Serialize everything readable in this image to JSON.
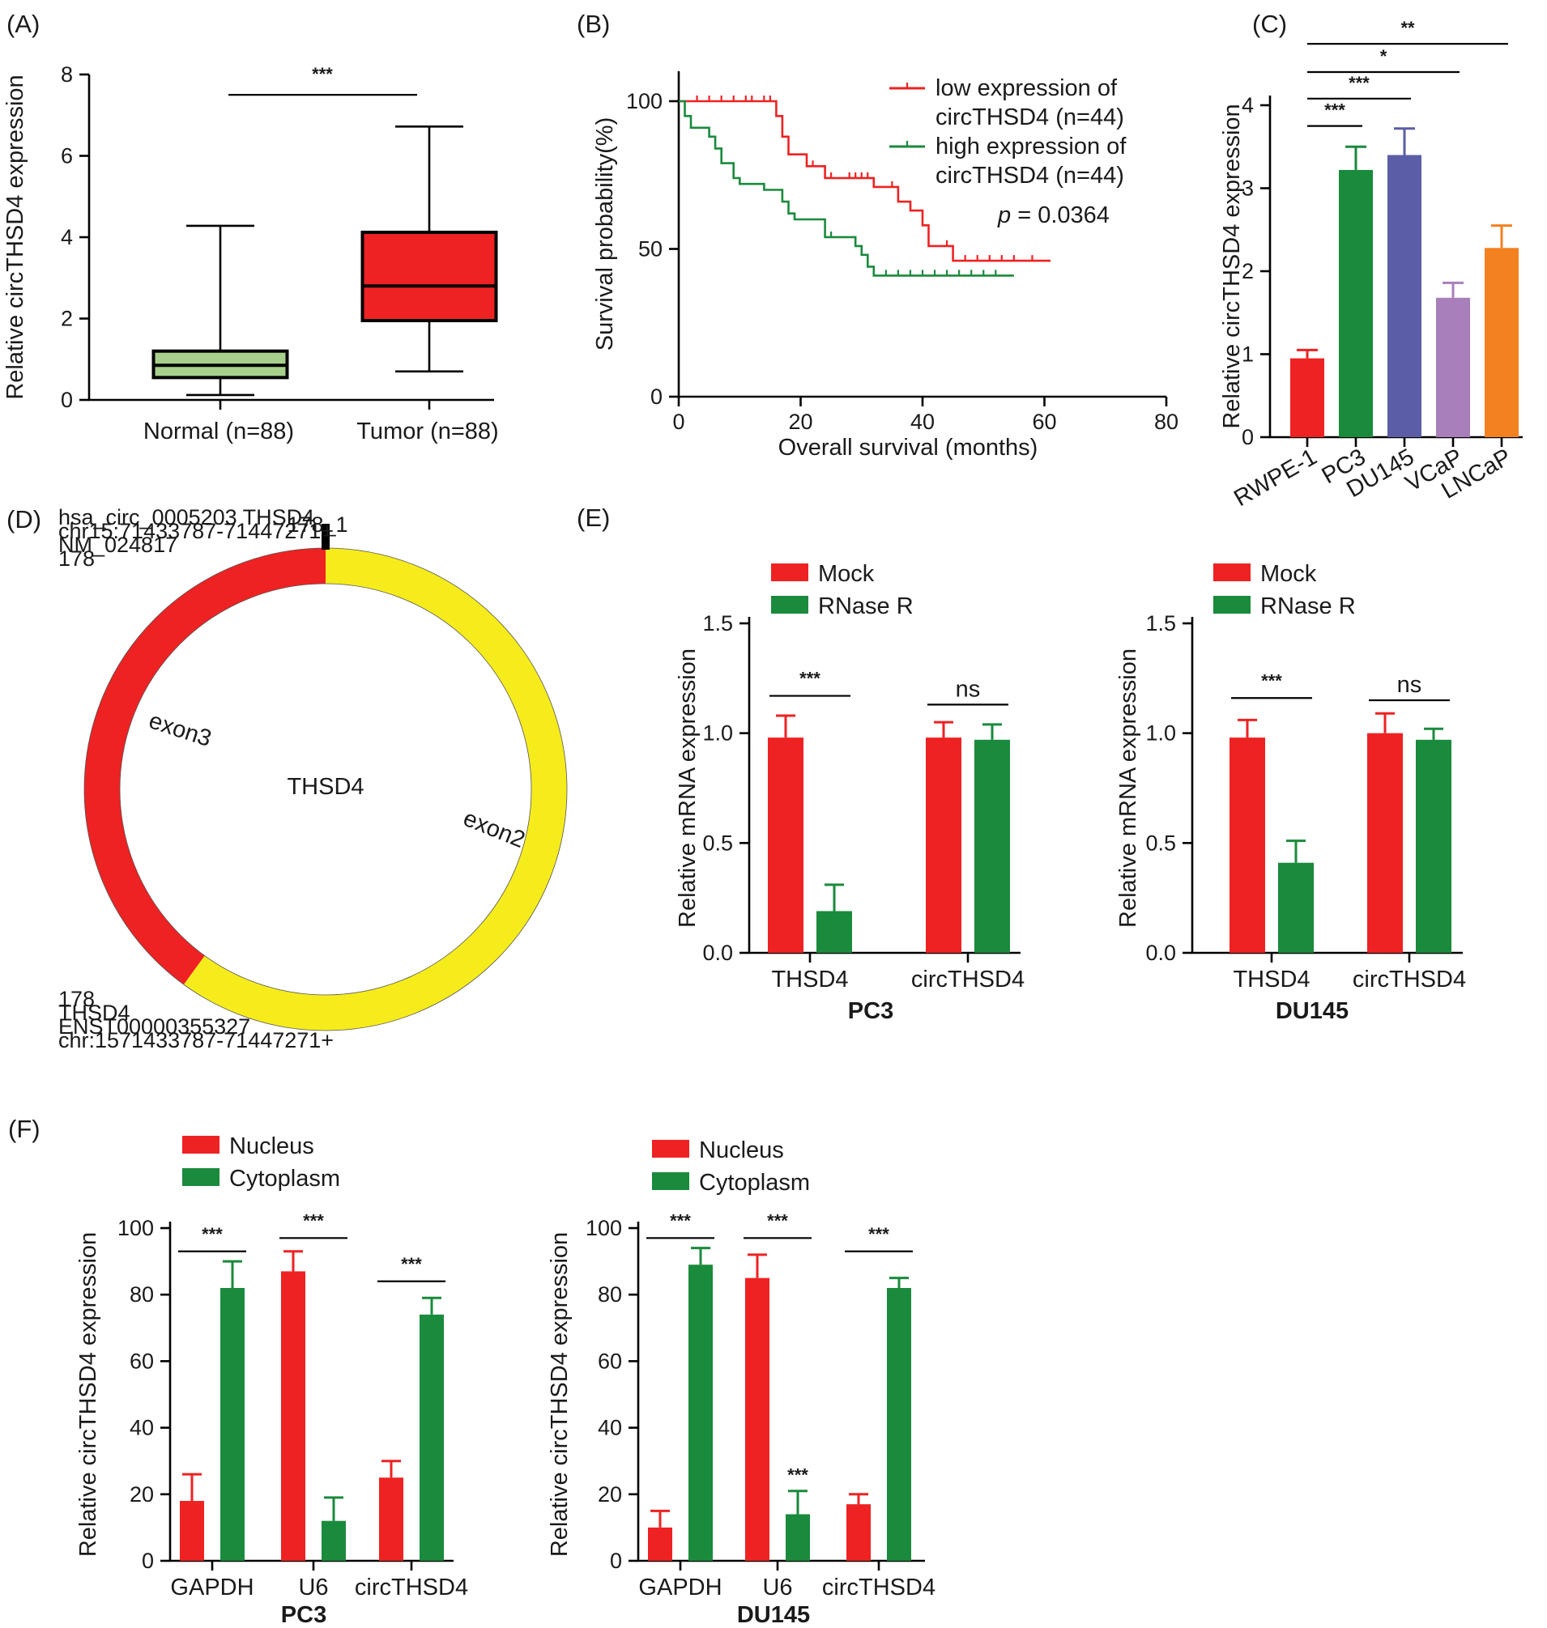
{
  "chart_data": [
    {
      "id": "A",
      "type": "box",
      "panel_label": "(A)",
      "ylabel": "Relative circTHSD4 expression",
      "ylim": [
        0,
        8
      ],
      "yticks": [
        0,
        2,
        4,
        6,
        8
      ],
      "categories": [
        "Normal (n=88)",
        "Tumor (n=88)"
      ],
      "boxes": [
        {
          "name": "Normal (n=88)",
          "min": 0.12,
          "q1": 0.55,
          "median": 0.85,
          "q3": 1.2,
          "max": 4.28,
          "color": "#a8d08d"
        },
        {
          "name": "Tumor (n=88)",
          "min": 0.7,
          "q1": 1.95,
          "median": 2.8,
          "q3": 4.12,
          "max": 6.72,
          "color": "#ee2222"
        }
      ],
      "significance": [
        {
          "from": 0,
          "to": 1,
          "level": 7.5,
          "label": "***"
        }
      ]
    },
    {
      "id": "B",
      "type": "line",
      "subtype": "kaplan-meier",
      "panel_label": "(B)",
      "xlabel": "Overall survival (months)",
      "ylabel": "Survival probability(%)",
      "xlim": [
        0,
        80
      ],
      "ylim": [
        0,
        100
      ],
      "xticks": [
        0,
        20,
        40,
        60,
        80
      ],
      "yticks": [
        0,
        50,
        100
      ],
      "pvalue_prefix": "p",
      "pvalue_text": " = 0.0364",
      "series": [
        {
          "name_line1": "low expression of",
          "name_line2": "circTHSD4 (n=44)",
          "color": "#ee2222",
          "steps": [
            [
              0,
              100
            ],
            [
              16,
              100
            ],
            [
              16,
              95
            ],
            [
              17,
              95
            ],
            [
              17,
              88
            ],
            [
              18,
              88
            ],
            [
              18,
              82
            ],
            [
              21,
              82
            ],
            [
              21,
              78
            ],
            [
              24,
              78
            ],
            [
              24,
              74
            ],
            [
              32,
              74
            ],
            [
              32,
              71
            ],
            [
              36,
              71
            ],
            [
              36,
              66
            ],
            [
              38,
              66
            ],
            [
              38,
              63
            ],
            [
              40,
              63
            ],
            [
              40,
              58
            ],
            [
              41,
              58
            ],
            [
              41,
              51
            ],
            [
              45,
              51
            ],
            [
              45,
              46
            ],
            [
              61,
              46
            ]
          ],
          "censors": [
            [
              3,
              100
            ],
            [
              5,
              100
            ],
            [
              7,
              100
            ],
            [
              9,
              100
            ],
            [
              11,
              100
            ],
            [
              12,
              100
            ],
            [
              14,
              100
            ],
            [
              15,
              100
            ],
            [
              22,
              78
            ],
            [
              25,
              74
            ],
            [
              28,
              74
            ],
            [
              29,
              74
            ],
            [
              30,
              74
            ],
            [
              31,
              74
            ],
            [
              35,
              71
            ],
            [
              44,
              51
            ],
            [
              47,
              46
            ],
            [
              49,
              46
            ],
            [
              51,
              46
            ],
            [
              53,
              46
            ],
            [
              55,
              46
            ],
            [
              58,
              46
            ]
          ]
        },
        {
          "name_line1": "high expression of",
          "name_line2": "circTHSD4 (n=44)",
          "color": "#1a8a3c",
          "steps": [
            [
              0,
              100
            ],
            [
              1,
              100
            ],
            [
              1,
              95
            ],
            [
              2,
              95
            ],
            [
              2,
              91
            ],
            [
              5,
              91
            ],
            [
              5,
              88
            ],
            [
              6,
              88
            ],
            [
              6,
              84
            ],
            [
              7,
              84
            ],
            [
              7,
              79
            ],
            [
              9,
              79
            ],
            [
              9,
              74
            ],
            [
              10,
              74
            ],
            [
              10,
              72
            ],
            [
              14,
              72
            ],
            [
              14,
              70
            ],
            [
              17,
              70
            ],
            [
              17,
              66
            ],
            [
              18,
              66
            ],
            [
              18,
              62
            ],
            [
              19,
              62
            ],
            [
              19,
              60
            ],
            [
              24,
              60
            ],
            [
              24,
              54
            ],
            [
              29,
              54
            ],
            [
              29,
              51
            ],
            [
              30,
              51
            ],
            [
              30,
              48
            ],
            [
              31,
              48
            ],
            [
              31,
              44
            ],
            [
              32,
              44
            ],
            [
              32,
              41
            ],
            [
              55,
              41
            ]
          ],
          "censors": [
            [
              25,
              54
            ],
            [
              34,
              41
            ],
            [
              36,
              41
            ],
            [
              38,
              41
            ],
            [
              40,
              41
            ],
            [
              42,
              41
            ],
            [
              44,
              41
            ],
            [
              46,
              41
            ],
            [
              48,
              41
            ],
            [
              50,
              41
            ],
            [
              52,
              41
            ]
          ]
        }
      ]
    },
    {
      "id": "C",
      "type": "bar",
      "panel_label": "(C)",
      "ylabel": "Relative circTHSD4 expression",
      "ylim": [
        0,
        4
      ],
      "yticks": [
        0,
        1,
        2,
        3,
        4
      ],
      "categories": [
        "RWPE-1",
        "PC3",
        "DU145",
        "VCaP",
        "LNCaP"
      ],
      "values": [
        0.95,
        3.22,
        3.4,
        1.68,
        2.28
      ],
      "errors": [
        0.1,
        0.28,
        0.32,
        0.18,
        0.27
      ],
      "colors": [
        "#ee2222",
        "#1a8a3c",
        "#5b5ea6",
        "#a97fbb",
        "#f38120"
      ],
      "significance": [
        {
          "from": 0,
          "to": 1,
          "level": 3.75,
          "label": "***"
        },
        {
          "from": 0,
          "to": 2,
          "level": 4.08,
          "label": "***"
        },
        {
          "from": 0,
          "to": 3,
          "level": 4.4,
          "label": "*"
        },
        {
          "from": 0,
          "to": 4,
          "level": 4.74,
          "label": "**"
        }
      ]
    },
    {
      "id": "E1",
      "type": "bar",
      "panel_label": "(E)",
      "ylabel": "Relative mRNA expression",
      "subtitle": "PC3",
      "ylim": [
        0,
        1.5
      ],
      "yticks": [
        "0.0",
        "0.5",
        "1.0",
        "1.5"
      ],
      "categories": [
        "THSD4",
        "circTHSD4"
      ],
      "legend": [
        "Mock",
        "RNase R"
      ],
      "series": [
        {
          "name": "Mock",
          "color": "#ee2222",
          "values": [
            0.98,
            0.98
          ],
          "errors": [
            0.1,
            0.07
          ]
        },
        {
          "name": "RNase R",
          "color": "#1a8a3c",
          "values": [
            0.19,
            0.97
          ],
          "errors": [
            0.12,
            0.07
          ]
        }
      ],
      "significance": [
        {
          "group": 0,
          "level": 1.17,
          "label": "***"
        },
        {
          "group": 1,
          "level": 1.13,
          "label": "ns"
        }
      ]
    },
    {
      "id": "E2",
      "type": "bar",
      "ylabel": "Relative mRNA expression",
      "subtitle": "DU145",
      "ylim": [
        0,
        1.5
      ],
      "yticks": [
        "0.0",
        "0.5",
        "1.0",
        "1.5"
      ],
      "categories": [
        "THSD4",
        "circTHSD4"
      ],
      "legend": [
        "Mock",
        "RNase R"
      ],
      "series": [
        {
          "name": "Mock",
          "color": "#ee2222",
          "values": [
            0.98,
            1.0
          ],
          "errors": [
            0.08,
            0.09
          ]
        },
        {
          "name": "RNase R",
          "color": "#1a8a3c",
          "values": [
            0.41,
            0.97
          ],
          "errors": [
            0.1,
            0.05
          ]
        }
      ],
      "significance": [
        {
          "group": 0,
          "level": 1.16,
          "label": "***"
        },
        {
          "group": 1,
          "level": 1.15,
          "label": "ns"
        }
      ]
    },
    {
      "id": "F1",
      "type": "bar",
      "panel_label": "(F)",
      "ylabel": "Relative circTHSD4 expression",
      "subtitle": "PC3",
      "ylim": [
        0,
        100
      ],
      "yticks": [
        0,
        20,
        40,
        60,
        80,
        100
      ],
      "categories": [
        "GAPDH",
        "U6",
        "circTHSD4"
      ],
      "legend": [
        "Nucleus",
        "Cytoplasm"
      ],
      "series": [
        {
          "name": "Nucleus",
          "color": "#ee2222",
          "values": [
            18,
            87,
            25
          ],
          "errors": [
            8,
            6,
            5
          ]
        },
        {
          "name": "Cytoplasm",
          "color": "#1a8a3c",
          "values": [
            82,
            12,
            74
          ],
          "errors": [
            8,
            7,
            5
          ]
        }
      ],
      "significance": [
        {
          "group": 0,
          "level": 93,
          "label": "***"
        },
        {
          "group": 1,
          "level": 97,
          "label": "***"
        },
        {
          "group": 2,
          "level": 84,
          "label": "***"
        }
      ]
    },
    {
      "id": "F2",
      "type": "bar",
      "ylabel": "Relative circTHSD4 expression",
      "subtitle": "DU145",
      "ylim": [
        0,
        100
      ],
      "yticks": [
        0,
        20,
        40,
        60,
        80,
        100
      ],
      "categories": [
        "GAPDH",
        "U6",
        "circTHSD4"
      ],
      "legend": [
        "Nucleus",
        "Cytoplasm"
      ],
      "series": [
        {
          "name": "Nucleus",
          "color": "#ee2222",
          "values": [
            10,
            85,
            17
          ],
          "errors": [
            5,
            7,
            3
          ]
        },
        {
          "name": "Cytoplasm",
          "color": "#1a8a3c",
          "values": [
            89,
            14,
            82
          ],
          "errors": [
            5,
            7,
            3
          ]
        }
      ],
      "significance": [
        {
          "group": 0,
          "level": 97,
          "label": "***"
        },
        {
          "group": 1,
          "level": 97,
          "label": "***"
        },
        {
          "group": 2,
          "level": 93,
          "label": "***"
        }
      ],
      "extra_marks": [
        {
          "group": 1,
          "series": 1,
          "label": "***"
        }
      ]
    }
  ],
  "circ_diagram": {
    "panel_label": "(D)",
    "center_label": "THSD4",
    "top_marker": "178_1",
    "info_top": [
      "hsa_circ_0005203 THSD4",
      "chr15:71433787-71447271+",
      "NM_024817",
      "178"
    ],
    "info_bottom": [
      "178",
      "THSD4",
      "ENST00000355327",
      "chr:1571433787-71447271+"
    ],
    "segments": [
      {
        "name": "exon2",
        "color": "#f6ec1c",
        "fraction": 0.6
      },
      {
        "name": "exon3",
        "color": "#ee2222",
        "fraction": 0.4
      }
    ]
  }
}
